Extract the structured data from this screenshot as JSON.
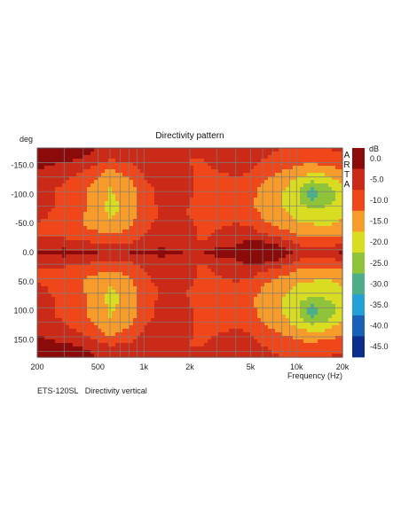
{
  "chart_data": {
    "type": "heatmap",
    "title": "Directivity pattern",
    "ylabel": "deg",
    "xlabel": "Frequency (Hz)",
    "colorbar_label": "dB",
    "watermark": "ARTA",
    "x_scale": "log",
    "xlim": [
      200,
      20000
    ],
    "ylim": [
      -180,
      180
    ],
    "x_ticks": [
      200,
      500,
      1000,
      2000,
      5000,
      10000,
      20000
    ],
    "x_tick_labels": [
      "200",
      "500",
      "1k",
      "2k",
      "5k",
      "10k",
      "20k"
    ],
    "y_ticks": [
      -150,
      -100,
      -50,
      0,
      50,
      100,
      150
    ],
    "y_tick_labels": [
      "-150.0",
      "-100.0",
      "-50.0",
      "0.0",
      "50.0",
      "100.0",
      "150.0"
    ],
    "x_grid": [
      200,
      300,
      400,
      500,
      600,
      700,
      800,
      900,
      1000,
      2000,
      3000,
      4000,
      5000,
      6000,
      7000,
      8000,
      9000,
      10000,
      20000
    ],
    "y_grid_step": 25,
    "grid": true,
    "colorbar": {
      "levels": [
        0,
        -5,
        -10,
        -15,
        -20,
        -25,
        -30,
        -35,
        -40,
        -45
      ],
      "level_labels": [
        "0.0",
        "-5.0",
        "-10.0",
        "-15.0",
        "-20.0",
        "-25.0",
        "-30.0",
        "-35.0",
        "-40.0",
        "-45.0"
      ],
      "colors": [
        "#8b0a0a",
        "#cc2a18",
        "#f0471a",
        "#f79b2a",
        "#d9dd22",
        "#8fc43a",
        "#4fae8a",
        "#23a0d6",
        "#1962b8",
        "#0b2e8c"
      ]
    },
    "freq_columns": [
      200,
      300,
      400,
      500,
      600,
      800,
      1000,
      1300,
      1600,
      2000,
      2500,
      3000,
      4000,
      5000,
      6000,
      8000,
      10000,
      12500,
      16000,
      20000
    ],
    "angle_rows": [
      0,
      10,
      20,
      30,
      40,
      50,
      60,
      70,
      80,
      90,
      100,
      110,
      120,
      130,
      140,
      150,
      160,
      170,
      180
    ],
    "values": [
      [
        -5,
        -3,
        -4,
        -5,
        -6,
        -5,
        -4,
        -3,
        -4,
        -6,
        -5,
        -3,
        -2,
        0,
        -1,
        -3,
        -6,
        -7,
        -7,
        -4
      ],
      [
        -7,
        -6,
        -7,
        -8,
        -9,
        -8,
        -7,
        -6,
        -7,
        -9,
        -8,
        -6,
        -5,
        -1,
        -2,
        -5,
        -9,
        -11,
        -11,
        -8
      ],
      [
        -9,
        -9,
        -10,
        -11,
        -12,
        -11,
        -9,
        -8,
        -8,
        -10,
        -10,
        -8,
        -7,
        -4,
        -5,
        -8,
        -12,
        -14,
        -14,
        -12
      ],
      [
        -10,
        -11,
        -12,
        -13,
        -14,
        -13,
        -10,
        -8,
        -7,
        -9,
        -11,
        -9,
        -8,
        -7,
        -9,
        -12,
        -15,
        -16,
        -16,
        -15
      ],
      [
        -10,
        -12,
        -14,
        -16,
        -17,
        -15,
        -11,
        -7,
        -6,
        -8,
        -12,
        -10,
        -9,
        -9,
        -12,
        -15,
        -17,
        -18,
        -19,
        -17
      ],
      [
        -10,
        -12,
        -15,
        -17,
        -18,
        -16,
        -12,
        -8,
        -7,
        -9,
        -13,
        -11,
        -10,
        -11,
        -14,
        -17,
        -19,
        -20,
        -21,
        -19
      ],
      [
        -9,
        -12,
        -15,
        -17,
        -20,
        -17,
        -13,
        -9,
        -8,
        -10,
        -14,
        -12,
        -11,
        -12,
        -15,
        -18,
        -21,
        -22,
        -23,
        -20
      ],
      [
        -9,
        -11,
        -15,
        -17,
        -21,
        -18,
        -13,
        -9,
        -8,
        -11,
        -15,
        -13,
        -12,
        -13,
        -16,
        -19,
        -22,
        -24,
        -24,
        -21
      ],
      [
        -8,
        -11,
        -14,
        -17,
        -22,
        -18,
        -13,
        -9,
        -7,
        -10,
        -15,
        -13,
        -13,
        -14,
        -17,
        -20,
        -23,
        -26,
        -25,
        -22
      ],
      [
        -8,
        -11,
        -14,
        -17,
        -21,
        -18,
        -13,
        -8,
        -7,
        -10,
        -15,
        -13,
        -13,
        -14,
        -17,
        -20,
        -24,
        -30,
        -27,
        -22
      ],
      [
        -8,
        -11,
        -14,
        -17,
        -21,
        -17,
        -12,
        -8,
        -6,
        -9,
        -14,
        -12,
        -12,
        -13,
        -17,
        -20,
        -24,
        -32,
        -28,
        -22
      ],
      [
        -8,
        -11,
        -14,
        -17,
        -20,
        -17,
        -12,
        -8,
        -6,
        -9,
        -14,
        -12,
        -12,
        -13,
        -16,
        -19,
        -23,
        -31,
        -27,
        -21
      ],
      [
        -7,
        -10,
        -13,
        -16,
        -19,
        -16,
        -11,
        -7,
        -6,
        -9,
        -13,
        -11,
        -11,
        -12,
        -15,
        -18,
        -22,
        -26,
        -24,
        -19
      ],
      [
        -6,
        -9,
        -12,
        -15,
        -18,
        -15,
        -10,
        -7,
        -6,
        -9,
        -13,
        -11,
        -10,
        -11,
        -14,
        -17,
        -20,
        -22,
        -21,
        -17
      ],
      [
        -5,
        -8,
        -10,
        -13,
        -16,
        -13,
        -9,
        -7,
        -7,
        -9,
        -12,
        -10,
        -9,
        -10,
        -12,
        -15,
        -17,
        -19,
        -18,
        -15
      ],
      [
        -4,
        -6,
        -8,
        -11,
        -13,
        -11,
        -8,
        -7,
        -8,
        -10,
        -11,
        -9,
        -8,
        -9,
        -11,
        -13,
        -15,
        -16,
        -15,
        -13
      ],
      [
        -3,
        -4,
        -6,
        -8,
        -10,
        -9,
        -8,
        -8,
        -9,
        -10,
        -10,
        -8,
        -7,
        -8,
        -10,
        -12,
        -13,
        -14,
        -13,
        -11
      ],
      [
        -2,
        -3,
        -4,
        -6,
        -8,
        -7,
        -7,
        -7,
        -8,
        -9,
        -9,
        -7,
        -6,
        -7,
        -9,
        -11,
        -12,
        -12,
        -11,
        -10
      ],
      [
        -2,
        -2,
        -3,
        -5,
        -7,
        -6,
        -6,
        -6,
        -7,
        -8,
        -8,
        -6,
        -5,
        -6,
        -8,
        -10,
        -11,
        -11,
        -10,
        -9
      ]
    ]
  },
  "footer": {
    "model": "ETS-120SL",
    "caption": "Directivity vertical"
  }
}
